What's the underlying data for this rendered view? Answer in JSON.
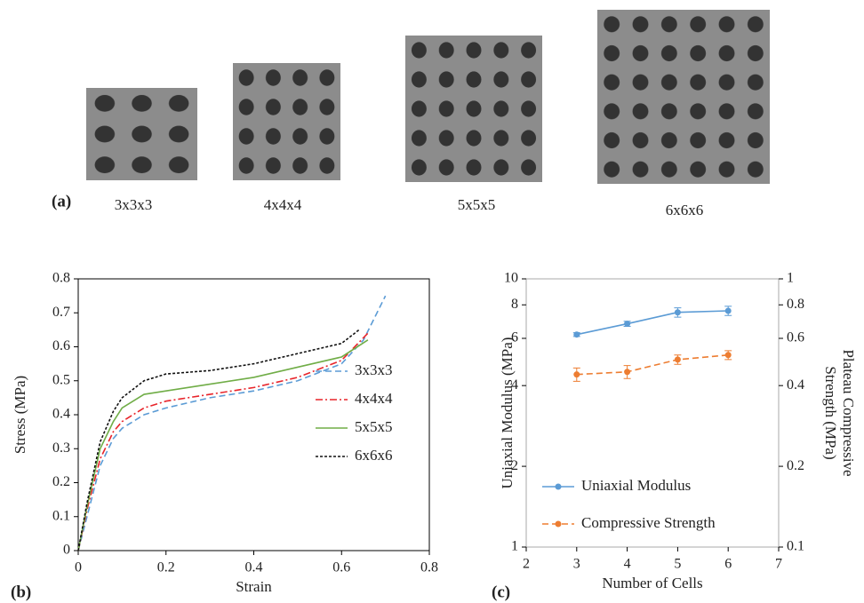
{
  "figure": {
    "panel_a": {
      "label": "(a)",
      "samples": [
        "3x3x3",
        "4x4x4",
        "5x5x5",
        "6x6x6"
      ]
    }
  },
  "chart_data": [
    {
      "type": "line",
      "panel_label": "(b)",
      "x_label": "Strain",
      "y_label": "Stress (MPa)",
      "xlim": [
        0,
        0.8
      ],
      "xticks": [
        0,
        0.2,
        0.4,
        0.6,
        0.8
      ],
      "ylim": [
        0,
        0.8
      ],
      "yticks": [
        0,
        0.1,
        0.2,
        0.3,
        0.4,
        0.5,
        0.6,
        0.7,
        0.8
      ],
      "legend": "lower right",
      "series": [
        {
          "name": "3x3x3",
          "color": "#5b9bd5",
          "linestyle": "dashed",
          "x": [
            0,
            0.02,
            0.05,
            0.08,
            0.1,
            0.15,
            0.2,
            0.3,
            0.4,
            0.5,
            0.6,
            0.65,
            0.7
          ],
          "values": [
            0,
            0.1,
            0.25,
            0.33,
            0.36,
            0.4,
            0.42,
            0.45,
            0.47,
            0.5,
            0.55,
            0.62,
            0.75
          ]
        },
        {
          "name": "4x4x4",
          "color": "#e8242a",
          "linestyle": "dashdot",
          "x": [
            0,
            0.02,
            0.05,
            0.08,
            0.1,
            0.15,
            0.2,
            0.3,
            0.4,
            0.5,
            0.6,
            0.66
          ],
          "values": [
            0,
            0.12,
            0.27,
            0.35,
            0.38,
            0.42,
            0.44,
            0.46,
            0.48,
            0.51,
            0.56,
            0.64
          ]
        },
        {
          "name": "5x5x5",
          "color": "#70ad47",
          "linestyle": "solid",
          "x": [
            0,
            0.02,
            0.05,
            0.08,
            0.1,
            0.15,
            0.2,
            0.3,
            0.4,
            0.5,
            0.6,
            0.66
          ],
          "values": [
            0,
            0.13,
            0.3,
            0.38,
            0.42,
            0.46,
            0.47,
            0.49,
            0.51,
            0.54,
            0.57,
            0.62
          ]
        },
        {
          "name": "6x6x6",
          "color": "#111111",
          "linestyle": "dotted",
          "x": [
            0,
            0.02,
            0.05,
            0.08,
            0.1,
            0.15,
            0.2,
            0.3,
            0.4,
            0.5,
            0.6,
            0.64
          ],
          "values": [
            0,
            0.14,
            0.32,
            0.41,
            0.45,
            0.5,
            0.52,
            0.53,
            0.55,
            0.58,
            0.61,
            0.65
          ]
        }
      ]
    },
    {
      "type": "line",
      "panel_label": "(c)",
      "x_label": "Number of Cells",
      "y_label": "Uniaxial Modulus (MPa)",
      "y2_label": [
        "Plateau Compressive",
        "Strength (MPa)"
      ],
      "xlim": [
        2,
        7
      ],
      "xticks": [
        2,
        3,
        4,
        5,
        6,
        7
      ],
      "ylim": [
        1,
        10
      ],
      "yticks": [
        1,
        2,
        4,
        6,
        8,
        10
      ],
      "ylog": true,
      "y2lim": [
        0.1,
        1
      ],
      "y2ticks": [
        0.1,
        0.2,
        0.4,
        0.6,
        0.8,
        1
      ],
      "y2log": true,
      "legend": "lower left",
      "x": [
        3,
        4,
        5,
        6
      ],
      "series": [
        {
          "name": "Uniaxial Modulus",
          "color": "#5b9bd5",
          "linestyle": "solid",
          "values": [
            6.2,
            6.8,
            7.5,
            7.6
          ],
          "errors": [
            0.1,
            0.15,
            0.3,
            0.3
          ]
        },
        {
          "name": "Compressive Strength",
          "color": "#ed7d31",
          "linestyle": "dashed",
          "axis": "y2",
          "values": [
            0.44,
            0.45,
            0.5,
            0.52
          ],
          "errors": [
            0.025,
            0.025,
            0.02,
            0.02
          ]
        }
      ]
    }
  ]
}
